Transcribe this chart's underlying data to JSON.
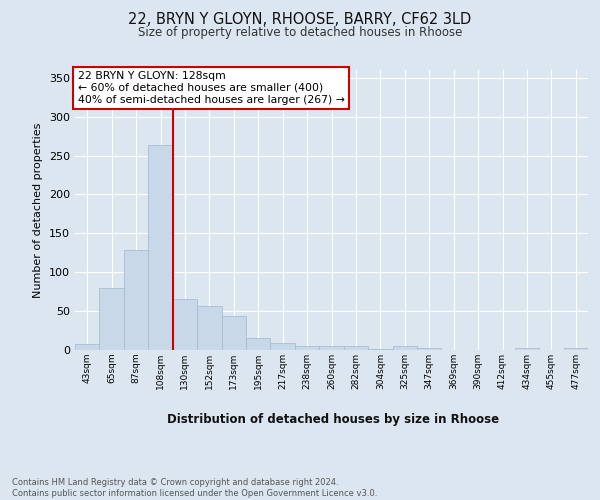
{
  "title_line1": "22, BRYN Y GLOYN, RHOOSE, BARRY, CF62 3LD",
  "title_line2": "Size of property relative to detached houses in Rhoose",
  "xlabel": "Distribution of detached houses by size in Rhoose",
  "ylabel": "Number of detached properties",
  "footnote": "Contains HM Land Registry data © Crown copyright and database right 2024.\nContains public sector information licensed under the Open Government Licence v3.0.",
  "bin_labels": [
    "43sqm",
    "65sqm",
    "87sqm",
    "108sqm",
    "130sqm",
    "152sqm",
    "173sqm",
    "195sqm",
    "217sqm",
    "238sqm",
    "260sqm",
    "282sqm",
    "304sqm",
    "325sqm",
    "347sqm",
    "369sqm",
    "390sqm",
    "412sqm",
    "434sqm",
    "455sqm",
    "477sqm"
  ],
  "bar_heights": [
    8,
    80,
    128,
    263,
    65,
    56,
    44,
    15,
    9,
    5,
    5,
    5,
    1,
    5,
    3,
    0,
    0,
    0,
    3,
    0,
    3
  ],
  "bar_color": "#c8d8e8",
  "bar_edge_color": "#a0b8cc",
  "vline_color": "#cc0000",
  "annotation_title": "22 BRYN Y GLOYN: 128sqm",
  "annotation_line2": "← 60% of detached houses are smaller (400)",
  "annotation_line3": "40% of semi-detached houses are larger (267) →",
  "annotation_box_color": "#ffffff",
  "annotation_box_edge": "#cc0000",
  "ylim": [
    0,
    360
  ],
  "yticks": [
    0,
    50,
    100,
    150,
    200,
    250,
    300,
    350
  ],
  "background_color": "#dce6f0",
  "plot_bg_color": "#dce6f0"
}
